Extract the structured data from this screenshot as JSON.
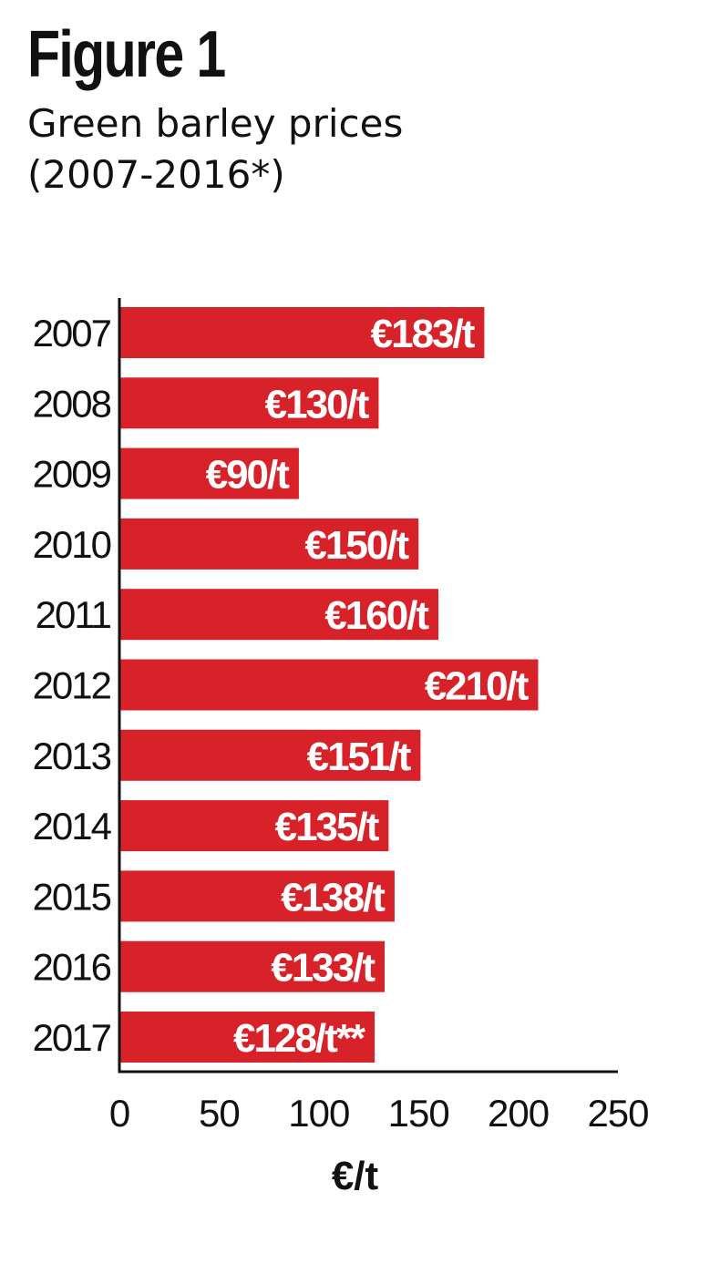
{
  "heading": {
    "figure_label": "Figure 1",
    "subtitle_line1": "Green barley prices",
    "subtitle_line2": "(2007-2016*)"
  },
  "colors": {
    "bar": "#d7222a",
    "bar_label": "#ffffff",
    "axis": "#111111",
    "text": "#111111"
  },
  "chart_data": {
    "type": "bar",
    "orientation": "horizontal",
    "title": "Figure 1",
    "subtitle": "Green barley prices (2007-2016*)",
    "categories": [
      "2007",
      "2008",
      "2009",
      "2010",
      "2011",
      "2012",
      "2013",
      "2014",
      "2015",
      "2016",
      "2017"
    ],
    "values": [
      183,
      130,
      90,
      150,
      160,
      210,
      151,
      135,
      138,
      133,
      128
    ],
    "data_labels": [
      "€183/t",
      "€130/t",
      "€90/t",
      "€150/t",
      "€160/t",
      "€210/t",
      "€151/t",
      "€135/t",
      "€138/t",
      "€133/t",
      "€128/t**"
    ],
    "xlabel": "€/t",
    "ylabel": "",
    "xlim": [
      0,
      250
    ],
    "xticks": [
      0,
      50,
      100,
      150,
      200,
      250
    ],
    "grid": false,
    "legend": "none"
  }
}
